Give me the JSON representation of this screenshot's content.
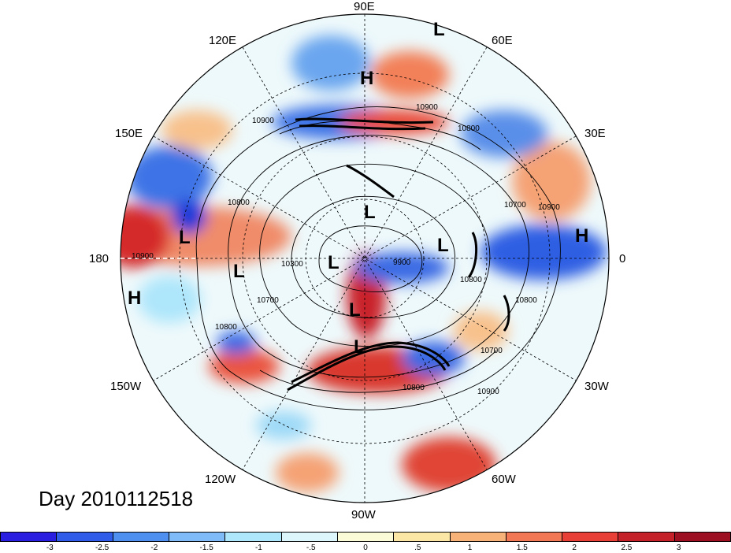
{
  "title_text": "Day 2010112518",
  "longitude_labels": {
    "lon_90E": "90E",
    "lon_120E": "120E",
    "lon_60E": "60E",
    "lon_150E": "150E",
    "lon_30E": "30E",
    "lon_180": "180",
    "lon_0": "0",
    "lon_150W": "150W",
    "lon_30W": "30W",
    "lon_120W": "120W",
    "lon_60W": "60W",
    "lon_90W": "90W"
  },
  "systems": [
    "L",
    "H",
    "L",
    "L",
    "H",
    "L",
    "L",
    "L",
    "H",
    "L",
    "L"
  ],
  "contour_labels": [
    "10900",
    "10800",
    "10900",
    "10800",
    "10700",
    "10900",
    "10900",
    "10300",
    "9900",
    "10800",
    "10700",
    "10800",
    "10800",
    "10700",
    "10900",
    "10800"
  ],
  "colorbar": {
    "colors": [
      "#2a1ee0",
      "#2f5ce8",
      "#4f8ff0",
      "#7fbcf7",
      "#aee6fb",
      "#dcf6fb",
      "#fcfbd8",
      "#fbe6a6",
      "#f7b27a",
      "#f27755",
      "#e83f36",
      "#c5212a",
      "#9c1021"
    ],
    "tick_labels": [
      "-3",
      "-2.5",
      "-2",
      "-1.5",
      "-1",
      "-.5",
      "0",
      ".5",
      "1",
      "1.5",
      "2",
      "2.5",
      "3"
    ]
  }
}
